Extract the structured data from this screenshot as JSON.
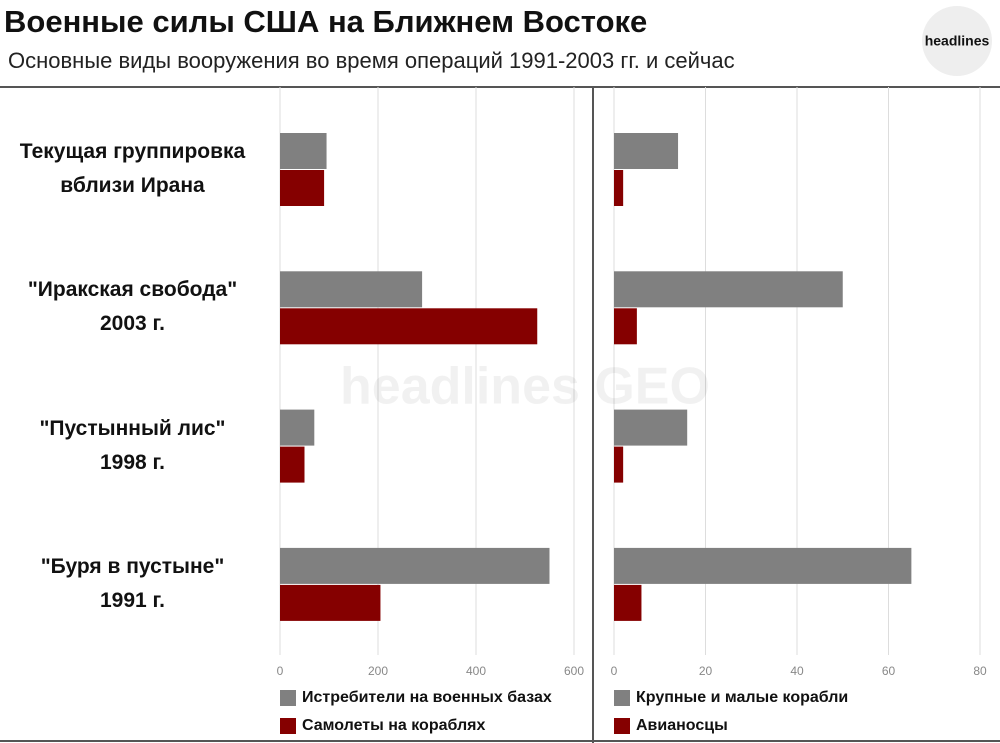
{
  "header": {
    "title": "Военные силы США на Ближнем Востоке",
    "subtitle": "Основные виды вооружения во время операций 1991-2003 гг. и сейчас",
    "logo": "headlines",
    "watermark": "headlines GEO"
  },
  "chart_data": [
    {
      "type": "bar",
      "orientation": "horizontal",
      "categories": [
        "Текущая группировка\nвблизи Ирана",
        "\"Иракская свобода\"\n2003 г.",
        "\"Пустынный лис\"\n1998 г.",
        "\"Буря в пустыне\"\n1991 г."
      ],
      "series": [
        {
          "name": "Истребители на военных базах",
          "color": "#808080",
          "values": [
            95,
            290,
            70,
            550
          ]
        },
        {
          "name": "Самолеты на кораблях",
          "color": "#850000",
          "values": [
            90,
            525,
            50,
            205
          ]
        }
      ],
      "xlim": [
        0,
        600
      ],
      "xticks": [
        0,
        200,
        400,
        600
      ],
      "grid": true
    },
    {
      "type": "bar",
      "orientation": "horizontal",
      "series": [
        {
          "name": "Крупные и малые корабли",
          "color": "#808080",
          "values": [
            14,
            50,
            16,
            65
          ]
        },
        {
          "name": "Авианосцы",
          "color": "#850000",
          "values": [
            2,
            5,
            2,
            6
          ]
        }
      ],
      "xlim": [
        0,
        80
      ],
      "xticks": [
        0,
        20,
        40,
        60,
        80
      ],
      "grid": true
    }
  ]
}
